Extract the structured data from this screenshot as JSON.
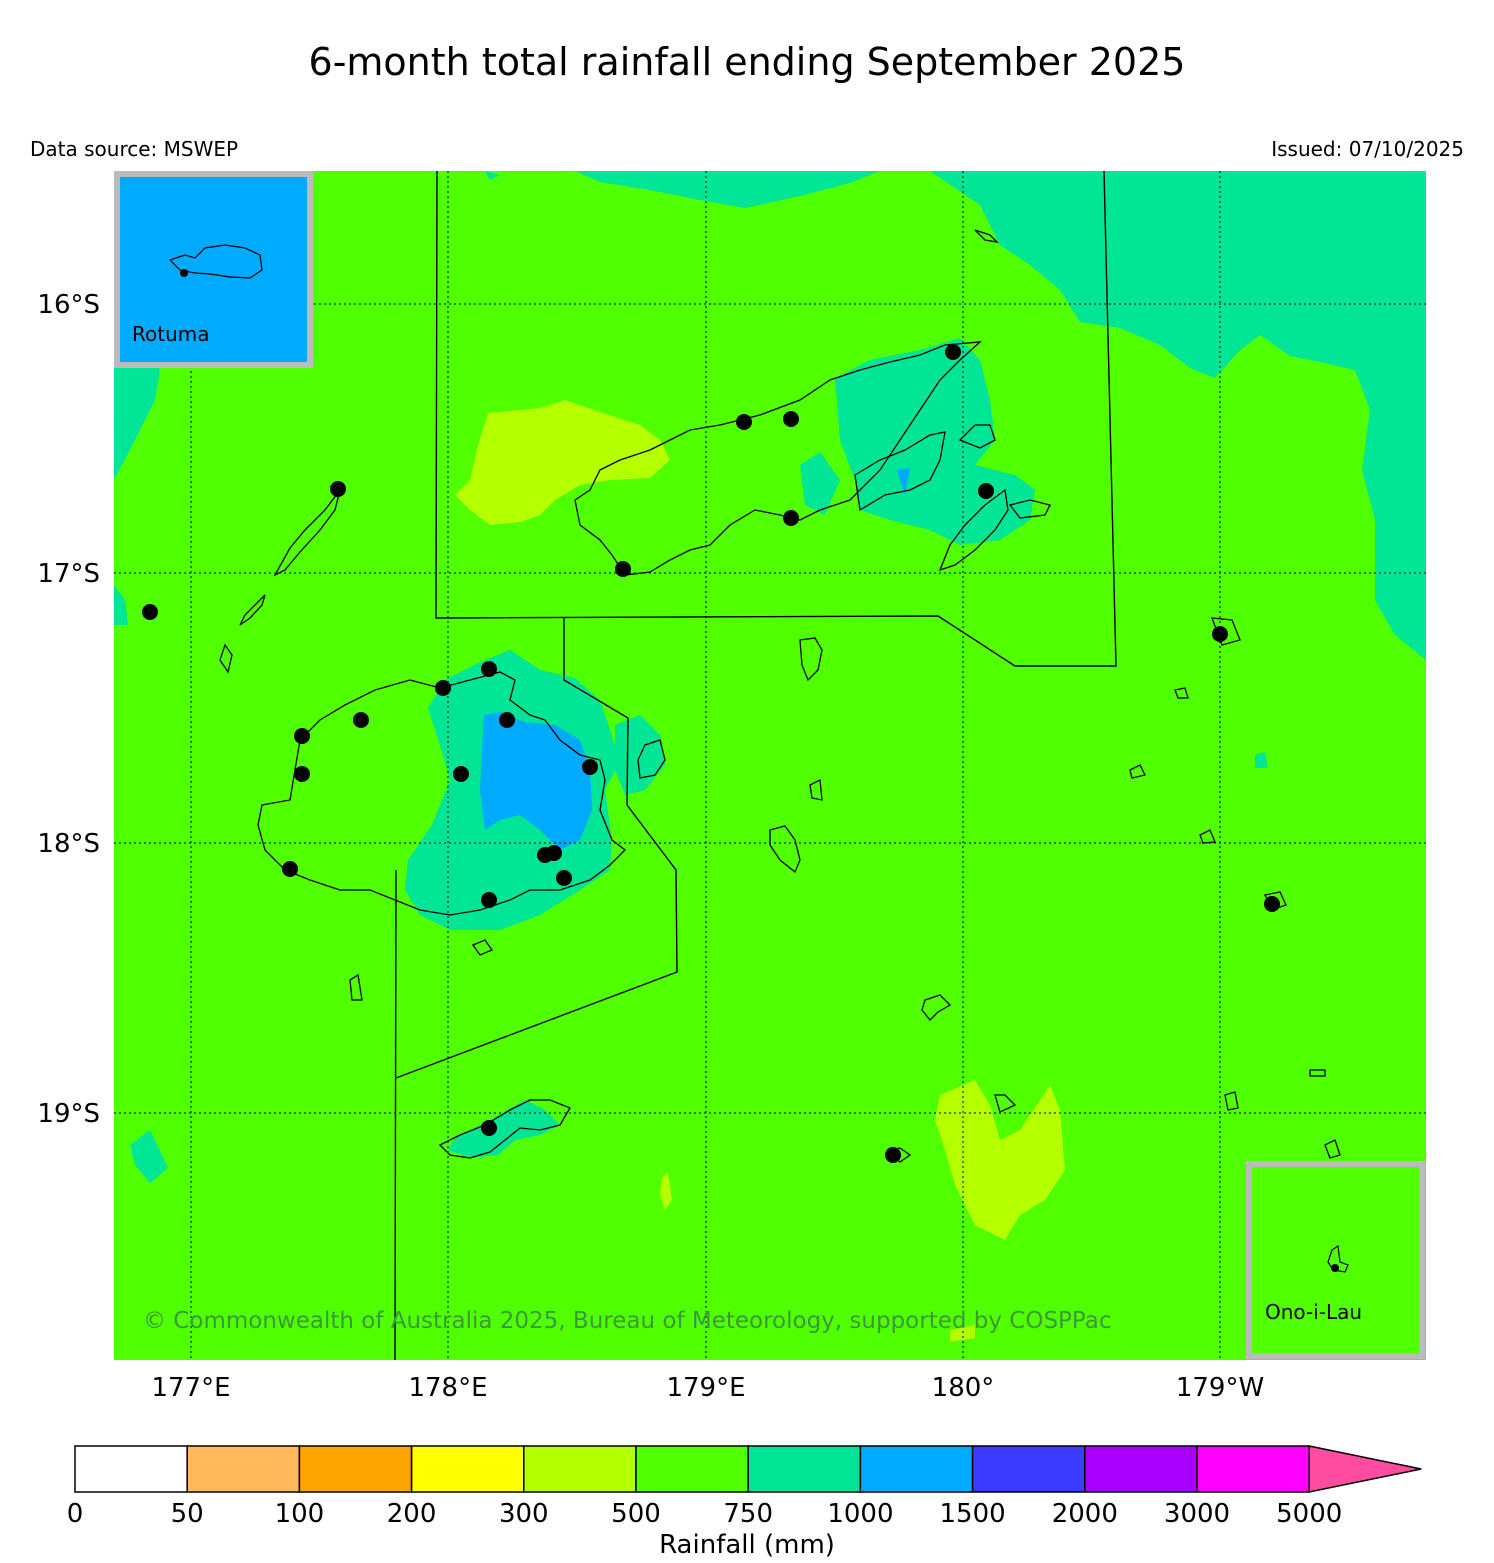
{
  "title": "6-month total rainfall ending September 2025",
  "data_source": "Data source: MSWEP",
  "issued": "Issued: 07/10/2025",
  "lat_labels": [
    "16°S",
    "17°S",
    "18°S",
    "19°S"
  ],
  "lon_labels": [
    "177°E",
    "178°E",
    "179°E",
    "180°",
    "179°W"
  ],
  "inset_rotuma": "Rotuma",
  "inset_onoilau": "Ono-i-Lau",
  "copyright": "© Commonwealth of Australia 2025, Bureau of Meteorology, supported by COSPPac",
  "legend": {
    "label": "Rainfall (mm)",
    "ticks": [
      "0",
      "50",
      "100",
      "200",
      "300",
      "500",
      "750",
      "1000",
      "1500",
      "2000",
      "3000",
      "5000"
    ],
    "colors": [
      "#ffffff",
      "#ffb95a",
      "#ffa500",
      "#ffff00",
      "#b4ff00",
      "#50ff00",
      "#00e696",
      "#00aaff",
      "#3c3cff",
      "#aa00ff",
      "#ff00ff",
      "#ff4ba0"
    ]
  },
  "colors": {
    "c500_750": "#50ff00",
    "c750_1000": "#00e696",
    "c1000_1500": "#00aaff",
    "c300_500": "#b4ff00",
    "inset_border": "#bbbbbb",
    "copyright": "#3a9a3a"
  }
}
